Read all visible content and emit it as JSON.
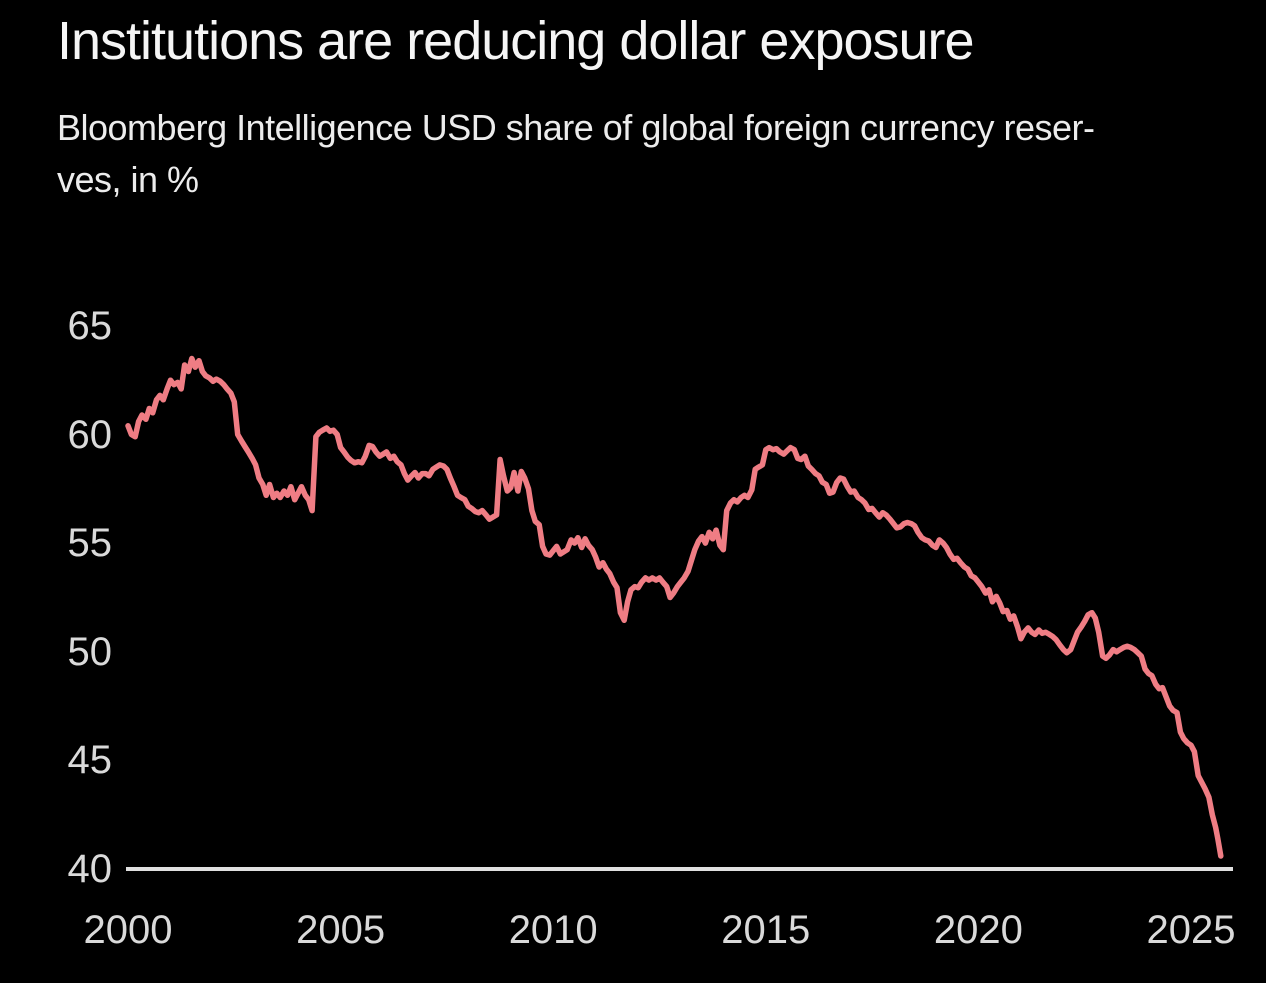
{
  "page": {
    "background": "#000000"
  },
  "header": {
    "title": "Institutions are reducing dollar exposure",
    "subtitle_line1": "Bloomberg Intelligence USD share of global foreign currency reser-",
    "subtitle_line2": "ves, in %"
  },
  "chart_data": {
    "type": "line",
    "title": "Institutions are reducing dollar exposure",
    "subtitle": "Bloomberg Intelligence USD share of global foreign currency reserves, in %",
    "series_name": "USD share of global foreign currency reserves",
    "unit": "%",
    "line_color": "#ef7d84",
    "axis_color": "#e0e0e0",
    "tick_label_color": "#dadada",
    "background_color": "#000000",
    "grid": false,
    "legend": "none",
    "xlim": [
      1999.9,
      2026.2
    ],
    "ylim": [
      40,
      65
    ],
    "y_ticks": [
      65,
      60,
      55,
      50,
      45,
      40
    ],
    "x_ticks": [
      2000,
      2005,
      2010,
      2015,
      2020,
      2025
    ],
    "points": [
      [
        2000.0,
        60.4
      ],
      [
        2000.08,
        60.0
      ],
      [
        2000.17,
        59.9
      ],
      [
        2000.25,
        60.6
      ],
      [
        2000.33,
        60.9
      ],
      [
        2000.42,
        60.7
      ],
      [
        2000.5,
        61.2
      ],
      [
        2000.58,
        61.0
      ],
      [
        2000.67,
        61.6
      ],
      [
        2000.75,
        61.8
      ],
      [
        2000.83,
        61.6
      ],
      [
        2000.92,
        62.1
      ],
      [
        2001.0,
        62.5
      ],
      [
        2001.08,
        62.3
      ],
      [
        2001.17,
        62.4
      ],
      [
        2001.25,
        62.1
      ],
      [
        2001.33,
        63.2
      ],
      [
        2001.42,
        62.9
      ],
      [
        2001.5,
        63.5
      ],
      [
        2001.58,
        63.1
      ],
      [
        2001.67,
        63.4
      ],
      [
        2001.75,
        62.9
      ],
      [
        2001.83,
        62.7
      ],
      [
        2001.92,
        62.6
      ],
      [
        2002.0,
        62.45
      ],
      [
        2002.08,
        62.55
      ],
      [
        2002.17,
        62.45
      ],
      [
        2002.25,
        62.3
      ],
      [
        2002.33,
        62.1
      ],
      [
        2002.42,
        61.9
      ],
      [
        2002.5,
        61.5
      ],
      [
        2002.58,
        60.0
      ],
      [
        2002.67,
        59.7
      ],
      [
        2002.75,
        59.45
      ],
      [
        2002.83,
        59.2
      ],
      [
        2002.92,
        58.9
      ],
      [
        2003.0,
        58.6
      ],
      [
        2003.08,
        58.0
      ],
      [
        2003.17,
        57.7
      ],
      [
        2003.25,
        57.2
      ],
      [
        2003.33,
        57.7
      ],
      [
        2003.42,
        57.1
      ],
      [
        2003.5,
        57.3
      ],
      [
        2003.58,
        57.1
      ],
      [
        2003.67,
        57.4
      ],
      [
        2003.75,
        57.2
      ],
      [
        2003.83,
        57.6
      ],
      [
        2003.92,
        57.0
      ],
      [
        2004.0,
        57.3
      ],
      [
        2004.08,
        57.6
      ],
      [
        2004.17,
        57.2
      ],
      [
        2004.25,
        57.0
      ],
      [
        2004.33,
        56.5
      ],
      [
        2004.42,
        59.9
      ],
      [
        2004.5,
        60.1
      ],
      [
        2004.58,
        60.2
      ],
      [
        2004.67,
        60.3
      ],
      [
        2004.75,
        60.15
      ],
      [
        2004.83,
        60.2
      ],
      [
        2004.92,
        60.0
      ],
      [
        2005.0,
        59.4
      ],
      [
        2005.08,
        59.2
      ],
      [
        2005.17,
        58.95
      ],
      [
        2005.25,
        58.8
      ],
      [
        2005.33,
        58.7
      ],
      [
        2005.42,
        58.75
      ],
      [
        2005.5,
        58.7
      ],
      [
        2005.58,
        59.0
      ],
      [
        2005.67,
        59.5
      ],
      [
        2005.75,
        59.45
      ],
      [
        2005.83,
        59.2
      ],
      [
        2005.92,
        59.0
      ],
      [
        2006.0,
        59.1
      ],
      [
        2006.08,
        59.2
      ],
      [
        2006.17,
        58.9
      ],
      [
        2006.25,
        59.0
      ],
      [
        2006.33,
        58.75
      ],
      [
        2006.42,
        58.6
      ],
      [
        2006.5,
        58.2
      ],
      [
        2006.58,
        57.9
      ],
      [
        2006.67,
        58.1
      ],
      [
        2006.75,
        58.25
      ],
      [
        2006.83,
        58.0
      ],
      [
        2006.92,
        58.2
      ],
      [
        2007.0,
        58.2
      ],
      [
        2007.08,
        58.1
      ],
      [
        2007.17,
        58.4
      ],
      [
        2007.25,
        58.5
      ],
      [
        2007.33,
        58.6
      ],
      [
        2007.42,
        58.55
      ],
      [
        2007.5,
        58.4
      ],
      [
        2007.58,
        58.0
      ],
      [
        2007.67,
        57.6
      ],
      [
        2007.75,
        57.2
      ],
      [
        2007.83,
        57.1
      ],
      [
        2007.92,
        57.0
      ],
      [
        2008.0,
        56.7
      ],
      [
        2008.08,
        56.6
      ],
      [
        2008.17,
        56.45
      ],
      [
        2008.25,
        56.4
      ],
      [
        2008.33,
        56.5
      ],
      [
        2008.42,
        56.3
      ],
      [
        2008.5,
        56.1
      ],
      [
        2008.58,
        56.2
      ],
      [
        2008.67,
        56.3
      ],
      [
        2008.75,
        58.85
      ],
      [
        2008.83,
        58.1
      ],
      [
        2008.92,
        57.4
      ],
      [
        2009.0,
        57.55
      ],
      [
        2009.08,
        58.25
      ],
      [
        2009.17,
        57.4
      ],
      [
        2009.25,
        58.3
      ],
      [
        2009.33,
        58.0
      ],
      [
        2009.42,
        57.5
      ],
      [
        2009.5,
        56.5
      ],
      [
        2009.58,
        56.0
      ],
      [
        2009.67,
        55.85
      ],
      [
        2009.75,
        54.85
      ],
      [
        2009.83,
        54.5
      ],
      [
        2009.92,
        54.45
      ],
      [
        2010.0,
        54.65
      ],
      [
        2010.08,
        54.85
      ],
      [
        2010.17,
        54.5
      ],
      [
        2010.25,
        54.6
      ],
      [
        2010.33,
        54.7
      ],
      [
        2010.42,
        55.15
      ],
      [
        2010.5,
        55.0
      ],
      [
        2010.58,
        55.25
      ],
      [
        2010.67,
        54.8
      ],
      [
        2010.75,
        55.2
      ],
      [
        2010.83,
        54.9
      ],
      [
        2010.92,
        54.7
      ],
      [
        2011.0,
        54.35
      ],
      [
        2011.08,
        53.9
      ],
      [
        2011.17,
        54.1
      ],
      [
        2011.25,
        53.8
      ],
      [
        2011.33,
        53.6
      ],
      [
        2011.42,
        53.2
      ],
      [
        2011.5,
        52.95
      ],
      [
        2011.58,
        51.8
      ],
      [
        2011.67,
        51.45
      ],
      [
        2011.75,
        52.3
      ],
      [
        2011.83,
        52.85
      ],
      [
        2011.92,
        53.0
      ],
      [
        2012.0,
        52.95
      ],
      [
        2012.08,
        53.2
      ],
      [
        2012.17,
        53.4
      ],
      [
        2012.25,
        53.3
      ],
      [
        2012.33,
        53.4
      ],
      [
        2012.42,
        53.3
      ],
      [
        2012.5,
        53.4
      ],
      [
        2012.58,
        53.2
      ],
      [
        2012.67,
        53.0
      ],
      [
        2012.75,
        52.5
      ],
      [
        2012.83,
        52.7
      ],
      [
        2012.92,
        53.0
      ],
      [
        2013.0,
        53.2
      ],
      [
        2013.08,
        53.4
      ],
      [
        2013.17,
        53.7
      ],
      [
        2013.25,
        54.2
      ],
      [
        2013.33,
        54.7
      ],
      [
        2013.42,
        55.1
      ],
      [
        2013.5,
        55.3
      ],
      [
        2013.58,
        55.0
      ],
      [
        2013.67,
        55.5
      ],
      [
        2013.75,
        55.2
      ],
      [
        2013.83,
        55.6
      ],
      [
        2013.92,
        54.9
      ],
      [
        2014.0,
        54.7
      ],
      [
        2014.08,
        56.5
      ],
      [
        2014.17,
        56.85
      ],
      [
        2014.25,
        57.0
      ],
      [
        2014.33,
        56.9
      ],
      [
        2014.42,
        57.1
      ],
      [
        2014.5,
        57.2
      ],
      [
        2014.58,
        57.1
      ],
      [
        2014.67,
        57.45
      ],
      [
        2014.75,
        58.4
      ],
      [
        2014.83,
        58.5
      ],
      [
        2014.92,
        58.6
      ],
      [
        2015.0,
        59.3
      ],
      [
        2015.08,
        59.4
      ],
      [
        2015.17,
        59.3
      ],
      [
        2015.25,
        59.35
      ],
      [
        2015.33,
        59.2
      ],
      [
        2015.42,
        59.1
      ],
      [
        2015.5,
        59.25
      ],
      [
        2015.58,
        59.4
      ],
      [
        2015.67,
        59.3
      ],
      [
        2015.75,
        58.9
      ],
      [
        2015.83,
        58.85
      ],
      [
        2015.92,
        59.0
      ],
      [
        2016.0,
        58.55
      ],
      [
        2016.08,
        58.4
      ],
      [
        2016.17,
        58.2
      ],
      [
        2016.25,
        58.1
      ],
      [
        2016.33,
        57.8
      ],
      [
        2016.42,
        57.7
      ],
      [
        2016.5,
        57.3
      ],
      [
        2016.58,
        57.35
      ],
      [
        2016.67,
        57.8
      ],
      [
        2016.75,
        58.0
      ],
      [
        2016.83,
        57.95
      ],
      [
        2016.92,
        57.6
      ],
      [
        2017.0,
        57.35
      ],
      [
        2017.08,
        57.4
      ],
      [
        2017.17,
        57.1
      ],
      [
        2017.25,
        57.0
      ],
      [
        2017.33,
        56.85
      ],
      [
        2017.42,
        56.55
      ],
      [
        2017.5,
        56.6
      ],
      [
        2017.58,
        56.4
      ],
      [
        2017.67,
        56.2
      ],
      [
        2017.75,
        56.4
      ],
      [
        2017.83,
        56.3
      ],
      [
        2017.92,
        56.1
      ],
      [
        2018.0,
        55.9
      ],
      [
        2018.08,
        55.7
      ],
      [
        2018.17,
        55.75
      ],
      [
        2018.25,
        55.9
      ],
      [
        2018.33,
        55.95
      ],
      [
        2018.42,
        55.9
      ],
      [
        2018.5,
        55.8
      ],
      [
        2018.58,
        55.5
      ],
      [
        2018.67,
        55.25
      ],
      [
        2018.75,
        55.15
      ],
      [
        2018.83,
        55.1
      ],
      [
        2018.92,
        54.9
      ],
      [
        2019.0,
        54.8
      ],
      [
        2019.08,
        55.15
      ],
      [
        2019.17,
        55.0
      ],
      [
        2019.25,
        54.8
      ],
      [
        2019.33,
        54.5
      ],
      [
        2019.42,
        54.25
      ],
      [
        2019.5,
        54.3
      ],
      [
        2019.58,
        54.1
      ],
      [
        2019.67,
        53.9
      ],
      [
        2019.75,
        53.8
      ],
      [
        2019.83,
        53.5
      ],
      [
        2019.92,
        53.4
      ],
      [
        2020.0,
        53.2
      ],
      [
        2020.08,
        53.0
      ],
      [
        2020.17,
        52.7
      ],
      [
        2020.25,
        52.85
      ],
      [
        2020.33,
        52.3
      ],
      [
        2020.42,
        52.55
      ],
      [
        2020.5,
        52.25
      ],
      [
        2020.58,
        51.85
      ],
      [
        2020.67,
        51.9
      ],
      [
        2020.75,
        51.5
      ],
      [
        2020.83,
        51.65
      ],
      [
        2020.92,
        51.15
      ],
      [
        2021.0,
        50.6
      ],
      [
        2021.08,
        50.9
      ],
      [
        2021.17,
        51.1
      ],
      [
        2021.25,
        50.9
      ],
      [
        2021.33,
        50.8
      ],
      [
        2021.42,
        51.0
      ],
      [
        2021.5,
        50.85
      ],
      [
        2021.58,
        50.9
      ],
      [
        2021.67,
        50.8
      ],
      [
        2021.75,
        50.7
      ],
      [
        2021.83,
        50.55
      ],
      [
        2021.92,
        50.3
      ],
      [
        2022.0,
        50.1
      ],
      [
        2022.08,
        49.95
      ],
      [
        2022.17,
        50.1
      ],
      [
        2022.25,
        50.5
      ],
      [
        2022.33,
        50.9
      ],
      [
        2022.42,
        51.15
      ],
      [
        2022.5,
        51.4
      ],
      [
        2022.58,
        51.7
      ],
      [
        2022.67,
        51.8
      ],
      [
        2022.75,
        51.55
      ],
      [
        2022.83,
        50.9
      ],
      [
        2022.92,
        49.8
      ],
      [
        2023.0,
        49.7
      ],
      [
        2023.08,
        49.85
      ],
      [
        2023.17,
        50.1
      ],
      [
        2023.25,
        50.0
      ],
      [
        2023.33,
        50.1
      ],
      [
        2023.42,
        50.2
      ],
      [
        2023.5,
        50.25
      ],
      [
        2023.58,
        50.2
      ],
      [
        2023.67,
        50.1
      ],
      [
        2023.75,
        49.95
      ],
      [
        2023.83,
        49.8
      ],
      [
        2023.92,
        49.2
      ],
      [
        2024.0,
        49.0
      ],
      [
        2024.08,
        48.9
      ],
      [
        2024.17,
        48.5
      ],
      [
        2024.25,
        48.3
      ],
      [
        2024.33,
        48.35
      ],
      [
        2024.42,
        47.9
      ],
      [
        2024.5,
        47.5
      ],
      [
        2024.58,
        47.3
      ],
      [
        2024.67,
        47.2
      ],
      [
        2024.75,
        46.3
      ],
      [
        2024.83,
        46.0
      ],
      [
        2024.92,
        45.8
      ],
      [
        2025.0,
        45.7
      ],
      [
        2025.08,
        45.4
      ],
      [
        2025.17,
        44.3
      ],
      [
        2025.25,
        44.0
      ],
      [
        2025.33,
        43.7
      ],
      [
        2025.42,
        43.3
      ],
      [
        2025.5,
        42.5
      ],
      [
        2025.58,
        41.9
      ],
      [
        2025.63,
        41.4
      ],
      [
        2025.7,
        40.6
      ]
    ]
  }
}
